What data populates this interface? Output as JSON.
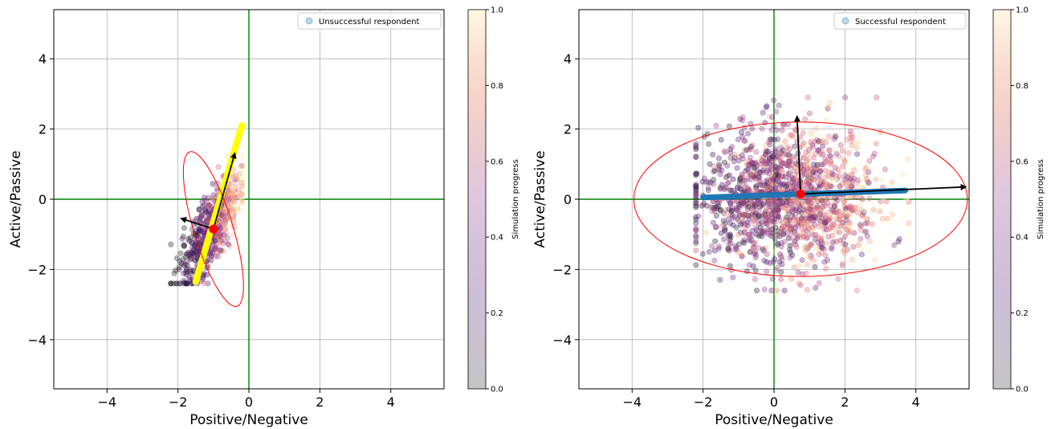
{
  "chart_data": [
    {
      "type": "scatter",
      "title": "",
      "xlabel": "Positive/Negative",
      "ylabel": "Active/Passive",
      "xlim": [
        -5.5,
        5.5
      ],
      "ylim": [
        -5.4,
        5.4
      ],
      "xticks": [
        -4,
        -2,
        0,
        2,
        4
      ],
      "yticks": [
        -4,
        -2,
        0,
        2,
        4
      ],
      "tick_labels_x": [
        "−4",
        "−2",
        "0",
        "2",
        "4"
      ],
      "tick_labels_y": [
        "−4",
        "−2",
        "0",
        "2",
        "4"
      ],
      "grid": true,
      "legend": {
        "position": "top-right",
        "label": "Unsuccessful respondent"
      },
      "colorbar": {
        "label": "Simulation progress",
        "range": [
          0,
          1
        ],
        "ticks": [
          "0.0",
          "0.2",
          "0.4",
          "0.6",
          "0.8",
          "1.0"
        ]
      },
      "zero_lines_color": "#008000",
      "cloud": {
        "x_range": [
          -2.2,
          -0.2
        ],
        "y_range": [
          -2.4,
          2.0
        ],
        "center": [
          -1.0,
          -0.8
        ],
        "slope": 2.3,
        "spread": 0.28
      },
      "trend_line": {
        "color": "#ffff00",
        "points": [
          [
            -1.5,
            -2.35
          ],
          [
            -0.2,
            2.1
          ]
        ]
      },
      "center": {
        "x": -1.0,
        "y": -0.85,
        "color": "#ff0000"
      },
      "ellipse": {
        "cx": -1.0,
        "cy": -0.85,
        "rx": 0.55,
        "ry": 2.3,
        "angle_deg": -17,
        "color": "#ff0000"
      },
      "arrows": [
        {
          "from": [
            -1.0,
            -0.85
          ],
          "to": [
            -1.9,
            -0.55
          ]
        },
        {
          "from": [
            -1.0,
            -0.85
          ],
          "to": [
            -0.4,
            1.3
          ]
        }
      ]
    },
    {
      "type": "scatter",
      "title": "",
      "xlabel": "Positive/Negative",
      "ylabel": "Active/Passive",
      "xlim": [
        -5.5,
        5.5
      ],
      "ylim": [
        -5.4,
        5.4
      ],
      "xticks": [
        -4,
        -2,
        0,
        2,
        4
      ],
      "yticks": [
        -4,
        -2,
        0,
        2,
        4
      ],
      "tick_labels_x": [
        "−4",
        "−2",
        "0",
        "2",
        "4"
      ],
      "tick_labels_y": [
        "−4",
        "−2",
        "0",
        "2",
        "4"
      ],
      "grid": true,
      "legend": {
        "position": "top-right",
        "label": "Successful respondent"
      },
      "colorbar": {
        "label": "Simulation progress",
        "range": [
          0,
          1
        ],
        "ticks": [
          "0.0",
          "0.2",
          "0.4",
          "0.6",
          "0.8",
          "1.0"
        ]
      },
      "zero_lines_color": "#008000",
      "cloud": {
        "x_range": [
          -2.2,
          3.8
        ],
        "y_range": [
          -2.6,
          2.9
        ],
        "center": [
          0.5,
          0.0
        ],
        "slope": 0.0,
        "spread": 0.95
      },
      "trend_line": {
        "color": "#1f77b4",
        "points": [
          [
            -2.0,
            0.05
          ],
          [
            3.7,
            0.25
          ]
        ]
      },
      "center": {
        "x": 0.75,
        "y": 0.15,
        "color": "#ff0000"
      },
      "ellipse": {
        "cx": 0.75,
        "cy": 0.0,
        "rx": 4.7,
        "ry": 2.2,
        "angle_deg": 0,
        "color": "#ff0000"
      },
      "arrows": [
        {
          "from": [
            0.75,
            0.15
          ],
          "to": [
            0.65,
            2.35
          ]
        },
        {
          "from": [
            0.75,
            0.15
          ],
          "to": [
            5.4,
            0.35
          ]
        }
      ]
    }
  ]
}
